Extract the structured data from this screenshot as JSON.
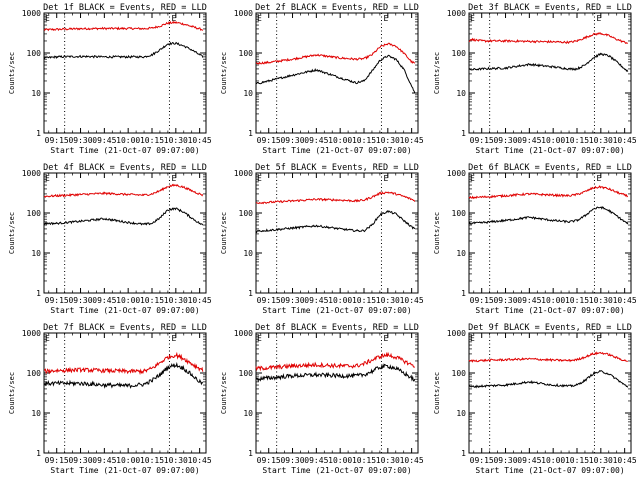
{
  "colors": {
    "events": "#000000",
    "lld": "#e00000",
    "axes": "#000000",
    "dotted": "#000000"
  },
  "panels": [
    {
      "title": "Det 1f BLACK = Events, RED = LLD",
      "ylabel": "Counts/sec",
      "xlabel": "Start Time (21-Oct-07 09:07:00)",
      "xticks": [
        "09:15",
        "09:30",
        "09:45",
        "10:00",
        "10:15",
        "10:30",
        "10:45"
      ],
      "yticks": [
        "1",
        "10",
        "100",
        "1000"
      ],
      "marker": "E",
      "chart_data": {
        "type": "line",
        "yscale": "log",
        "xlim": [
          "09:07",
          "10:49"
        ],
        "ylim": [
          1,
          1000
        ],
        "markers_x": [
          "09:20",
          "10:26"
        ],
        "series": [
          {
            "x": [
              "09:07",
              "09:15",
              "09:30",
              "09:45",
              "10:00",
              "10:10",
              "10:15",
              "10:20",
              "10:25",
              "10:30",
              "10:35",
              "10:40",
              "10:45",
              "10:47"
            ],
            "values": [
              380,
              390,
              405,
              410,
              410,
              405,
              420,
              470,
              560,
              580,
              530,
              460,
              400,
              380
            ]
          },
          {
            "x": [
              "09:07",
              "09:15",
              "09:30",
              "09:45",
              "10:00",
              "10:10",
              "10:15",
              "10:20",
              "10:25",
              "10:30",
              "10:35",
              "10:40",
              "10:45",
              "10:47"
            ],
            "values": [
              75,
              80,
              82,
              80,
              80,
              80,
              90,
              120,
              170,
              175,
              150,
              120,
              90,
              80
            ]
          }
        ]
      }
    },
    {
      "title": "Det 2f BLACK = Events, RED = LLD",
      "ylabel": "Counts/sec",
      "xlabel": "Start Time (21-Oct-07 09:07:00)",
      "xticks": [
        "09:15",
        "09:30",
        "09:45",
        "10:00",
        "10:15",
        "10:30",
        "10:45"
      ],
      "yticks": [
        "1",
        "10",
        "100",
        "1000"
      ],
      "marker": "E",
      "chart_data": {
        "type": "line",
        "yscale": "log",
        "xlim": [
          "09:07",
          "10:49"
        ],
        "ylim": [
          1,
          1000
        ],
        "markers_x": [
          "09:20",
          "10:26"
        ],
        "series": [
          {
            "x": [
              "09:07",
              "09:15",
              "09:30",
              "09:45",
              "10:00",
              "10:10",
              "10:15",
              "10:20",
              "10:25",
              "10:30",
              "10:35",
              "10:40",
              "10:45",
              "10:47"
            ],
            "values": [
              55,
              58,
              70,
              90,
              75,
              70,
              72,
              90,
              140,
              170,
              150,
              100,
              60,
              55
            ]
          },
          {
            "x": [
              "09:07",
              "09:15",
              "09:30",
              "09:45",
              "10:00",
              "10:10",
              "10:15",
              "10:20",
              "10:25",
              "10:30",
              "10:35",
              "10:40",
              "10:45",
              "10:47"
            ],
            "values": [
              17,
              20,
              28,
              38,
              24,
              18,
              20,
              35,
              65,
              85,
              70,
              40,
              15,
              10
            ]
          }
        ]
      }
    },
    {
      "title": "Det 3f BLACK = Events, RED = LLD",
      "ylabel": "Counts/sec",
      "xlabel": "Start Time (21-Oct-07 09:07:00)",
      "xticks": [
        "09:15",
        "09:30",
        "09:45",
        "10:00",
        "10:15",
        "10:30",
        "10:45"
      ],
      "yticks": [
        "1",
        "10",
        "100",
        "1000"
      ],
      "marker": "E",
      "chart_data": {
        "type": "line",
        "yscale": "log",
        "xlim": [
          "09:07",
          "10:49"
        ],
        "ylim": [
          1,
          1000
        ],
        "markers_x": [
          "09:20",
          "10:26"
        ],
        "series": [
          {
            "x": [
              "09:07",
              "09:08",
              "09:15",
              "09:30",
              "09:45",
              "10:00",
              "10:10",
              "10:15",
              "10:20",
              "10:25",
              "10:30",
              "10:35",
              "10:40",
              "10:45",
              "10:47"
            ],
            "values": [
              200,
              220,
              200,
              200,
              195,
              190,
              185,
              200,
              240,
              290,
              310,
              270,
              220,
              185,
              180
            ]
          },
          {
            "x": [
              "09:07",
              "09:15",
              "09:30",
              "09:45",
              "10:00",
              "10:10",
              "10:15",
              "10:20",
              "10:25",
              "10:30",
              "10:35",
              "10:40",
              "10:45",
              "10:47"
            ],
            "values": [
              38,
              40,
              42,
              52,
              45,
              40,
              40,
              50,
              75,
              95,
              85,
              60,
              40,
              35
            ]
          }
        ]
      }
    },
    {
      "title": "Det 4f BLACK = Events, RED = LLD",
      "ylabel": "Counts/sec",
      "xlabel": "Start Time (21-Oct-07 09:07:00)",
      "xticks": [
        "09:15",
        "09:30",
        "09:45",
        "10:00",
        "10:15",
        "10:30",
        "10:45"
      ],
      "yticks": [
        "1",
        "10",
        "100",
        "1000"
      ],
      "marker": "E",
      "chart_data": {
        "type": "line",
        "yscale": "log",
        "xlim": [
          "09:07",
          "10:49"
        ],
        "ylim": [
          1,
          1000
        ],
        "markers_x": [
          "09:20",
          "10:26"
        ],
        "series": [
          {
            "x": [
              "09:07",
              "09:15",
              "09:30",
              "09:45",
              "10:00",
              "10:10",
              "10:15",
              "10:20",
              "10:25",
              "10:30",
              "10:35",
              "10:40",
              "10:45",
              "10:47"
            ],
            "values": [
              260,
              270,
              290,
              310,
              290,
              280,
              300,
              360,
              460,
              500,
              440,
              360,
              300,
              280
            ]
          },
          {
            "x": [
              "09:07",
              "09:15",
              "09:30",
              "09:45",
              "10:00",
              "10:10",
              "10:15",
              "10:20",
              "10:25",
              "10:30",
              "10:35",
              "10:40",
              "10:45",
              "10:47"
            ],
            "values": [
              55,
              55,
              62,
              72,
              58,
              52,
              55,
              75,
              120,
              130,
              105,
              75,
              55,
              50
            ]
          }
        ]
      }
    },
    {
      "title": "Det 5f BLACK = Events, RED = LLD",
      "ylabel": "Counts/sec",
      "xlabel": "Start Time (21-Oct-07 09:07:00)",
      "xticks": [
        "09:15",
        "09:30",
        "09:45",
        "10:00",
        "10:15",
        "10:30",
        "10:45"
      ],
      "yticks": [
        "1",
        "10",
        "100",
        "1000"
      ],
      "marker": "E",
      "chart_data": {
        "type": "line",
        "yscale": "log",
        "xlim": [
          "09:07",
          "10:49"
        ],
        "ylim": [
          1,
          1000
        ],
        "markers_x": [
          "09:20",
          "10:26"
        ],
        "series": [
          {
            "x": [
              "09:07",
              "09:15",
              "09:30",
              "09:45",
              "10:00",
              "10:10",
              "10:15",
              "10:20",
              "10:25",
              "10:30",
              "10:35",
              "10:40",
              "10:45",
              "10:47"
            ],
            "values": [
              180,
              185,
              200,
              220,
              210,
              200,
              210,
              250,
              310,
              330,
              300,
              260,
              220,
              200
            ]
          },
          {
            "x": [
              "09:07",
              "09:15",
              "09:30",
              "09:45",
              "10:00",
              "10:10",
              "10:15",
              "10:20",
              "10:25",
              "10:30",
              "10:35",
              "10:40",
              "10:45",
              "10:47"
            ],
            "values": [
              35,
              37,
              42,
              48,
              40,
              36,
              36,
              50,
              90,
              110,
              95,
              65,
              45,
              40
            ]
          }
        ]
      }
    },
    {
      "title": "Det 6f BLACK = Events, RED = LLD",
      "ylabel": "Counts/sec",
      "xlabel": "Start Time (21-Oct-07 09:07:00)",
      "xticks": [
        "09:15",
        "09:30",
        "09:45",
        "10:00",
        "10:15",
        "10:30",
        "10:45"
      ],
      "yticks": [
        "1",
        "10",
        "100",
        "1000"
      ],
      "marker": "E",
      "chart_data": {
        "type": "line",
        "yscale": "log",
        "xlim": [
          "09:07",
          "10:49"
        ],
        "ylim": [
          1,
          1000
        ],
        "markers_x": [
          "09:20",
          "10:26"
        ],
        "series": [
          {
            "x": [
              "09:07",
              "09:15",
              "09:30",
              "09:45",
              "10:00",
              "10:10",
              "10:15",
              "10:20",
              "10:25",
              "10:30",
              "10:35",
              "10:40",
              "10:45",
              "10:47"
            ],
            "values": [
              240,
              250,
              270,
              300,
              280,
              270,
              290,
              340,
              420,
              450,
              400,
              330,
              280,
              260
            ]
          },
          {
            "x": [
              "09:07",
              "09:15",
              "09:30",
              "09:45",
              "10:00",
              "10:10",
              "10:15",
              "10:20",
              "10:25",
              "10:30",
              "10:35",
              "10:40",
              "10:45",
              "10:47"
            ],
            "values": [
              55,
              57,
              65,
              78,
              65,
              60,
              65,
              85,
              125,
              140,
              115,
              85,
              60,
              55
            ]
          }
        ]
      }
    },
    {
      "title": "Det 7f BLACK = Events, RED = LLD",
      "ylabel": "Counts/sec",
      "xlabel": "Start Time (21-Oct-07 09:07:00)",
      "xticks": [
        "09:15",
        "09:30",
        "09:45",
        "10:00",
        "10:15",
        "10:30",
        "10:45"
      ],
      "yticks": [
        "1",
        "10",
        "100",
        "1000"
      ],
      "marker": "E",
      "chart_data": {
        "type": "line",
        "yscale": "log",
        "xlim": [
          "09:07",
          "10:49"
        ],
        "ylim": [
          1,
          1000
        ],
        "markers_x": [
          "09:20",
          "10:26"
        ],
        "series": [
          {
            "x": [
              "09:07",
              "09:15",
              "09:30",
              "09:45",
              "10:00",
              "10:10",
              "10:15",
              "10:20",
              "10:25",
              "10:30",
              "10:35",
              "10:40",
              "10:45",
              "10:47"
            ],
            "values": [
              110,
              115,
              120,
              115,
              110,
              110,
              130,
              180,
              250,
              280,
              230,
              170,
              130,
              120
            ]
          },
          {
            "x": [
              "09:07",
              "09:15",
              "09:30",
              "09:45",
              "10:00",
              "10:10",
              "10:15",
              "10:20",
              "10:25",
              "10:30",
              "10:35",
              "10:40",
              "10:45",
              "10:47"
            ],
            "values": [
              55,
              55,
              55,
              50,
              48,
              52,
              65,
              90,
              140,
              160,
              130,
              90,
              60,
              55
            ]
          }
        ]
      }
    },
    {
      "title": "Det 8f BLACK = Events, RED = LLD",
      "ylabel": "Counts/sec",
      "xlabel": "Start Time (21-Oct-07 09:07:00)",
      "xticks": [
        "09:15",
        "09:30",
        "09:45",
        "10:00",
        "10:15",
        "10:30",
        "10:45"
      ],
      "yticks": [
        "1",
        "10",
        "100",
        "1000"
      ],
      "marker": "E",
      "chart_data": {
        "type": "line",
        "yscale": "log",
        "xlim": [
          "09:07",
          "10:49"
        ],
        "ylim": [
          1,
          1000
        ],
        "markers_x": [
          "09:20",
          "10:26"
        ],
        "series": [
          {
            "x": [
              "09:07",
              "09:15",
              "09:30",
              "09:45",
              "10:00",
              "10:10",
              "10:15",
              "10:20",
              "10:25",
              "10:30",
              "10:35",
              "10:40",
              "10:45",
              "10:47"
            ],
            "values": [
              130,
              135,
              150,
              160,
              150,
              150,
              170,
              210,
              260,
              280,
              250,
              200,
              160,
              150
            ]
          },
          {
            "x": [
              "09:07",
              "09:15",
              "09:30",
              "09:45",
              "10:00",
              "10:10",
              "10:15",
              "10:20",
              "10:25",
              "10:30",
              "10:35",
              "10:40",
              "10:45",
              "10:47"
            ],
            "values": [
              70,
              75,
              85,
              90,
              85,
              85,
              90,
              110,
              140,
              150,
              130,
              100,
              75,
              65
            ]
          }
        ]
      }
    },
    {
      "title": "Det 9f BLACK = Events, RED = LLD",
      "ylabel": "Counts/sec",
      "xlabel": "Start Time (21-Oct-07 09:07:00)",
      "xticks": [
        "09:15",
        "09:30",
        "09:45",
        "10:00",
        "10:15",
        "10:30",
        "10:45"
      ],
      "yticks": [
        "1",
        "10",
        "100",
        "1000"
      ],
      "marker": "E",
      "chart_data": {
        "type": "line",
        "yscale": "log",
        "xlim": [
          "09:07",
          "10:49"
        ],
        "ylim": [
          1,
          1000
        ],
        "markers_x": [
          "09:20",
          "10:26"
        ],
        "series": [
          {
            "x": [
              "09:07",
              "09:15",
              "09:30",
              "09:45",
              "10:00",
              "10:10",
              "10:15",
              "10:20",
              "10:25",
              "10:30",
              "10:35",
              "10:40",
              "10:45",
              "10:47"
            ],
            "values": [
              200,
              205,
              215,
              225,
              210,
              205,
              215,
              250,
              300,
              320,
              290,
              240,
              205,
              200
            ]
          },
          {
            "x": [
              "09:07",
              "09:15",
              "09:30",
              "09:45",
              "10:00",
              "10:10",
              "10:15",
              "10:20",
              "10:25",
              "10:30",
              "10:35",
              "10:40",
              "10:45",
              "10:47"
            ],
            "values": [
              45,
              47,
              50,
              60,
              50,
              47,
              50,
              65,
              95,
              110,
              95,
              70,
              50,
              45
            ]
          }
        ]
      }
    }
  ]
}
